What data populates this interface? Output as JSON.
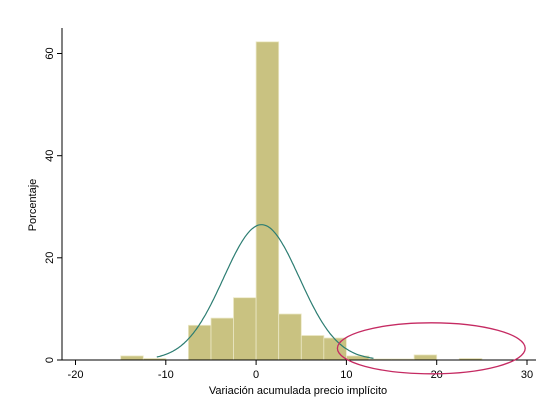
{
  "chart_data": {
    "type": "bar",
    "subtype": "histogram",
    "title": "",
    "xlabel": "Variación acumulada precio implícito",
    "ylabel": "Porcentaje",
    "xlim": [
      -21.5,
      31
    ],
    "ylim": [
      0,
      65
    ],
    "xticks": [
      -20,
      -10,
      0,
      10,
      20,
      30
    ],
    "yticks": [
      0,
      20,
      40,
      60
    ],
    "grid": false,
    "legend": "none",
    "bins": [
      {
        "x0": -15,
        "x1": -12.5,
        "value": 0.8
      },
      {
        "x0": -12.5,
        "x1": -10,
        "value": 0.3
      },
      {
        "x0": -7.5,
        "x1": -5,
        "value": 6.8
      },
      {
        "x0": -5,
        "x1": -2.5,
        "value": 8.2
      },
      {
        "x0": -2.5,
        "x1": 0,
        "value": 12.2
      },
      {
        "x0": 0,
        "x1": 2.5,
        "value": 62.3
      },
      {
        "x0": 2.5,
        "x1": 5,
        "value": 9.0
      },
      {
        "x0": 5,
        "x1": 7.5,
        "value": 4.8
      },
      {
        "x0": 7.5,
        "x1": 10,
        "value": 4.3
      },
      {
        "x0": 10,
        "x1": 12.5,
        "value": 0.8
      },
      {
        "x0": 12.5,
        "x1": 15,
        "value": 0.2
      },
      {
        "x0": 15,
        "x1": 17.5,
        "value": 0.2
      },
      {
        "x0": 17.5,
        "x1": 20,
        "value": 1.0
      },
      {
        "x0": 22.5,
        "x1": 25,
        "value": 0.3
      }
    ],
    "normal_curve": {
      "mean": 0.6,
      "peak": 26.5,
      "sd": 4.2,
      "x_range": [
        -11,
        13
      ]
    },
    "annotation": {
      "shape": "ellipse",
      "cx": 19.4,
      "cy": 2.3,
      "rx": 10.4,
      "ry": 5.0
    },
    "colors": {
      "bar_fill": "#c9c281",
      "bar_edge": "#ece8c6",
      "curve": "#2c7d72",
      "ellipse": "#c52a62",
      "axis": "#000000"
    }
  }
}
